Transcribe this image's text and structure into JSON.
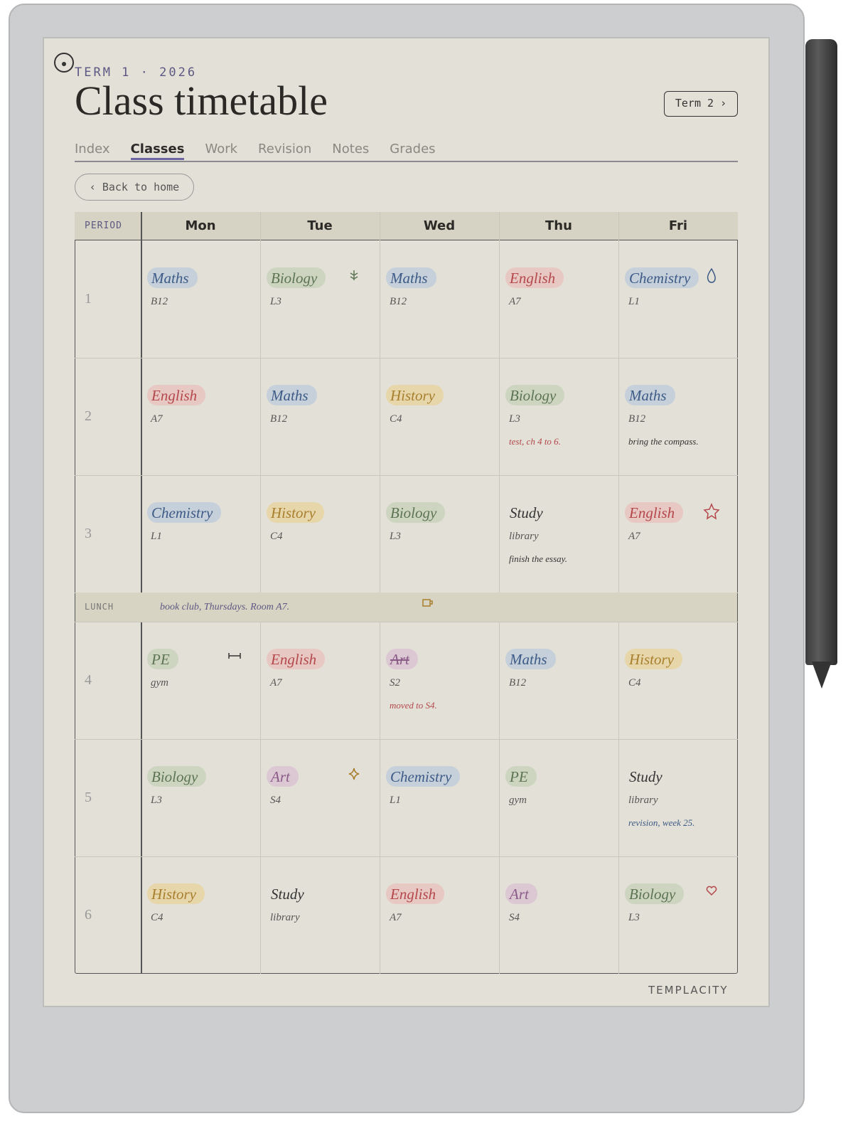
{
  "header": {
    "eyebrow": "TERM 1 · 2026",
    "title": "Class timetable",
    "button": "Term 2 ›"
  },
  "tabs": {
    "items": [
      "Index",
      "Classes",
      "Work",
      "Revision",
      "Notes",
      "Grades"
    ],
    "active": 1
  },
  "back": "‹ Back to home",
  "palette": {
    "blue": {
      "text": "#3d5b86",
      "bg": "#c6d0db"
    },
    "green": {
      "text": "#5d7452",
      "bg": "#cdd5c1"
    },
    "red": {
      "text": "#b4474b",
      "bg": "#e7c8c3"
    },
    "yellow": {
      "text": "#a77f2e",
      "bg": "#e7d6a9"
    },
    "purple": {
      "text": "#8b5b88",
      "bg": "#dbc8d3"
    },
    "plain": {
      "text": "#333333",
      "bg": null
    }
  },
  "table": {
    "period_header": "PERIOD",
    "days": [
      "Mon",
      "Tue",
      "Wed",
      "Thu",
      "Fri"
    ],
    "rows": [
      {
        "period": "1",
        "cells": [
          {
            "subject": "Maths",
            "room": "B12",
            "tone": "blue"
          },
          {
            "subject": "Biology",
            "room": "L3",
            "tone": "green"
          },
          {
            "subject": "Maths",
            "room": "B12",
            "tone": "blue"
          },
          {
            "subject": "English",
            "room": "A7",
            "tone": "red"
          },
          {
            "subject": "Chemistry",
            "room": "L1",
            "tone": "blue"
          }
        ]
      },
      {
        "period": "2",
        "cells": [
          {
            "subject": "English",
            "room": "A7",
            "tone": "red"
          },
          {
            "subject": "Maths",
            "room": "B12",
            "tone": "blue"
          },
          {
            "subject": "History",
            "room": "C4",
            "tone": "yellow"
          },
          {
            "subject": "Biology",
            "room": "L3",
            "tone": "green",
            "note": "test, ch 4 to 6.",
            "note_tone": "red"
          },
          {
            "subject": "Maths",
            "room": "B12",
            "tone": "blue",
            "note": "bring the compass.",
            "note_tone": "plain"
          }
        ]
      },
      {
        "period": "3",
        "cells": [
          {
            "subject": "Chemistry",
            "room": "L1",
            "tone": "blue"
          },
          {
            "subject": "History",
            "room": "C4",
            "tone": "yellow"
          },
          {
            "subject": "Biology",
            "room": "L3",
            "tone": "green"
          },
          {
            "subject": "Study",
            "room": "library",
            "tone": "plain",
            "note": "finish the essay.",
            "note_tone": "plain"
          },
          {
            "subject": "English",
            "room": "A7",
            "tone": "red"
          }
        ]
      },
      {
        "label": "LUNCH",
        "note": "book club, Thursdays. Room A7."
      },
      {
        "period": "4",
        "cells": [
          {
            "subject": "PE",
            "room": "gym",
            "tone": "green"
          },
          {
            "subject": "English",
            "room": "A7",
            "tone": "red"
          },
          {
            "subject": "Art",
            "room": "S2",
            "tone": "purple",
            "struck": true,
            "note": "moved to S4.",
            "note_tone": "red"
          },
          {
            "subject": "Maths",
            "room": "B12",
            "tone": "blue"
          },
          {
            "subject": "History",
            "room": "C4",
            "tone": "yellow"
          }
        ]
      },
      {
        "period": "5",
        "cells": [
          {
            "subject": "Biology",
            "room": "L3",
            "tone": "green"
          },
          {
            "subject": "Art",
            "room": "S4",
            "tone": "purple"
          },
          {
            "subject": "Chemistry",
            "room": "L1",
            "tone": "blue"
          },
          {
            "subject": "PE",
            "room": "gym",
            "tone": "green"
          },
          {
            "subject": "Study",
            "room": "library",
            "tone": "plain",
            "note": "revision, week 25.",
            "note_tone": "blue"
          }
        ]
      },
      {
        "period": "6",
        "cells": [
          {
            "subject": "History",
            "room": "C4",
            "tone": "yellow"
          },
          {
            "subject": "Study",
            "room": "library",
            "tone": "plain"
          },
          {
            "subject": "English",
            "room": "A7",
            "tone": "red"
          },
          {
            "subject": "Art",
            "room": "S4",
            "tone": "purple"
          },
          {
            "subject": "Biology",
            "room": "L3",
            "tone": "green"
          }
        ]
      }
    ]
  },
  "brand": "TEMPLACITY"
}
